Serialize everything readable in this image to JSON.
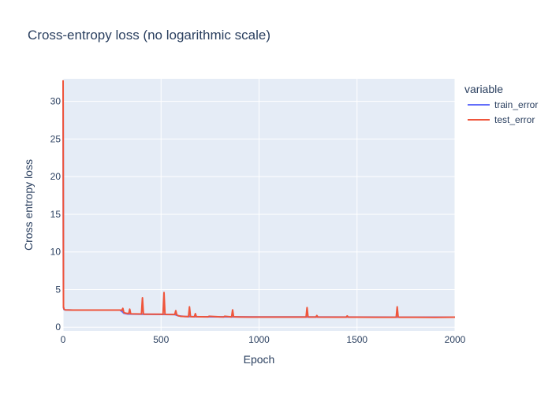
{
  "chart_data": {
    "type": "line",
    "title": "Cross-entropy loss (no logarithmic scale)",
    "xlabel": "Epoch",
    "ylabel": "Cross entropy loss",
    "xlim": [
      0,
      2000
    ],
    "ylim": [
      -0.5,
      33
    ],
    "xticks": [
      0,
      500,
      1000,
      1500,
      2000
    ],
    "yticks": [
      0,
      5,
      10,
      15,
      20,
      25,
      30
    ],
    "grid": true,
    "log_scale": false,
    "legend_position": "right",
    "legend_title": "variable",
    "colors": {
      "plot_background": "#e5ecf6",
      "grid": "#ffffff",
      "train_error": "#636efa",
      "test_error": "#ef553b"
    },
    "series": [
      {
        "name": "train_error",
        "x": [
          0,
          2,
          5,
          10,
          50,
          100,
          200,
          290,
          300,
          310,
          330,
          400,
          500,
          570,
          590,
          620,
          700,
          1000,
          1500,
          2000
        ],
        "y": [
          32.5,
          2.6,
          2.35,
          2.3,
          2.28,
          2.27,
          2.27,
          2.27,
          2.1,
          1.85,
          1.75,
          1.72,
          1.7,
          1.68,
          1.5,
          1.42,
          1.38,
          1.36,
          1.34,
          1.33
        ]
      },
      {
        "name": "test_error",
        "x": [
          0,
          2,
          5,
          10,
          50,
          100,
          200,
          290,
          300,
          305,
          310,
          320,
          335,
          340,
          345,
          400,
          405,
          410,
          415,
          500,
          510,
          515,
          520,
          570,
          575,
          580,
          585,
          600,
          620,
          640,
          645,
          650,
          655,
          670,
          675,
          680,
          700,
          740,
          745,
          800,
          820,
          825,
          860,
          865,
          870,
          900,
          950,
          1000,
          1100,
          1200,
          1240,
          1245,
          1250,
          1255,
          1290,
          1295,
          1300,
          1400,
          1445,
          1450,
          1455,
          1500,
          1600,
          1700,
          1705,
          1710,
          1715,
          1800,
          1900,
          2000
        ],
        "y": [
          32.8,
          2.7,
          2.4,
          2.3,
          2.28,
          2.28,
          2.28,
          2.28,
          2.25,
          2.5,
          1.95,
          1.85,
          1.8,
          2.4,
          1.78,
          1.75,
          3.9,
          1.75,
          1.72,
          1.72,
          1.7,
          4.6,
          1.7,
          1.68,
          2.2,
          1.65,
          1.55,
          1.45,
          1.42,
          1.4,
          2.7,
          1.42,
          1.4,
          1.38,
          1.8,
          1.4,
          1.38,
          1.37,
          1.45,
          1.37,
          1.36,
          1.45,
          1.36,
          2.3,
          1.38,
          1.36,
          1.35,
          1.35,
          1.34,
          1.34,
          1.34,
          2.6,
          1.36,
          1.34,
          1.34,
          1.55,
          1.34,
          1.33,
          1.33,
          1.5,
          1.33,
          1.33,
          1.32,
          1.32,
          2.7,
          1.34,
          1.32,
          1.32,
          1.31,
          1.33
        ]
      }
    ]
  }
}
